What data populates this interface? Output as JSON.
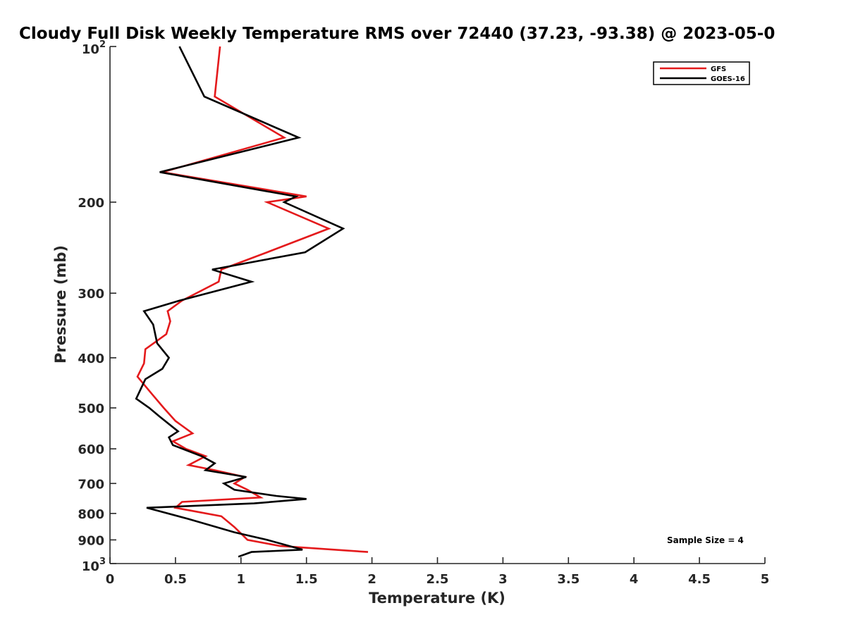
{
  "chart_data": {
    "type": "line",
    "title": "Cloudy Full Disk Weekly Temperature RMS over 72440 (37.23, -93.38) @ 2023-05-0",
    "xlabel": "Temperature (K)",
    "ylabel": "Pressure (mb)",
    "xlim": [
      0,
      5
    ],
    "ylim": [
      100,
      1000
    ],
    "y_scale": "log",
    "y_reversed": true,
    "grid": false,
    "legend_position": "top-right",
    "x_ticks": [
      {
        "value": 0,
        "label": "0"
      },
      {
        "value": 0.5,
        "label": "0.5"
      },
      {
        "value": 1,
        "label": "1"
      },
      {
        "value": 1.5,
        "label": "1.5"
      },
      {
        "value": 2,
        "label": "2"
      },
      {
        "value": 2.5,
        "label": "2.5"
      },
      {
        "value": 3,
        "label": "3"
      },
      {
        "value": 3.5,
        "label": "3.5"
      },
      {
        "value": 4,
        "label": "4"
      },
      {
        "value": 4.5,
        "label": "4.5"
      },
      {
        "value": 5,
        "label": "5"
      }
    ],
    "y_ticks": [
      {
        "value": 100,
        "label": "10",
        "exponent": "2"
      },
      {
        "value": 200,
        "label": "200"
      },
      {
        "value": 300,
        "label": "300"
      },
      {
        "value": 400,
        "label": "400"
      },
      {
        "value": 500,
        "label": "500"
      },
      {
        "value": 600,
        "label": "600"
      },
      {
        "value": 700,
        "label": "700"
      },
      {
        "value": 800,
        "label": "800"
      },
      {
        "value": 900,
        "label": "900"
      },
      {
        "value": 1000,
        "label": "10",
        "exponent": "3"
      }
    ],
    "annotation": "Sample Size = 4",
    "series": [
      {
        "name": "GFS",
        "color": "#e41a1c",
        "points": [
          [
            0.84,
            100
          ],
          [
            0.8,
            125
          ],
          [
            1.33,
            150
          ],
          [
            0.4,
            175
          ],
          [
            1.5,
            195
          ],
          [
            1.2,
            200
          ],
          [
            1.67,
            225
          ],
          [
            1.2,
            250
          ],
          [
            0.85,
            270
          ],
          [
            0.83,
            285
          ],
          [
            0.55,
            310
          ],
          [
            0.44,
            325
          ],
          [
            0.46,
            340
          ],
          [
            0.43,
            360
          ],
          [
            0.27,
            385
          ],
          [
            0.26,
            410
          ],
          [
            0.21,
            435
          ],
          [
            0.32,
            470
          ],
          [
            0.41,
            500
          ],
          [
            0.5,
            530
          ],
          [
            0.63,
            560
          ],
          [
            0.48,
            580
          ],
          [
            0.58,
            600
          ],
          [
            0.73,
            620
          ],
          [
            0.6,
            645
          ],
          [
            0.8,
            660
          ],
          [
            1.03,
            680
          ],
          [
            0.95,
            700
          ],
          [
            1.05,
            720
          ],
          [
            1.15,
            745
          ],
          [
            0.55,
            760
          ],
          [
            0.5,
            780
          ],
          [
            0.85,
            810
          ],
          [
            0.95,
            850
          ],
          [
            1.05,
            900
          ],
          [
            1.3,
            925
          ],
          [
            1.97,
            950
          ]
        ]
      },
      {
        "name": "GOES-16",
        "color": "#000000",
        "points": [
          [
            0.53,
            100
          ],
          [
            0.72,
            125
          ],
          [
            1.44,
            150
          ],
          [
            0.38,
            175
          ],
          [
            1.42,
            195
          ],
          [
            1.33,
            200
          ],
          [
            1.78,
            225
          ],
          [
            1.49,
            250
          ],
          [
            0.78,
            270
          ],
          [
            1.08,
            285
          ],
          [
            0.53,
            310
          ],
          [
            0.26,
            325
          ],
          [
            0.33,
            345
          ],
          [
            0.36,
            375
          ],
          [
            0.45,
            400
          ],
          [
            0.4,
            420
          ],
          [
            0.27,
            440
          ],
          [
            0.2,
            480
          ],
          [
            0.3,
            500
          ],
          [
            0.38,
            520
          ],
          [
            0.52,
            555
          ],
          [
            0.45,
            570
          ],
          [
            0.48,
            590
          ],
          [
            0.7,
            620
          ],
          [
            0.8,
            640
          ],
          [
            0.73,
            660
          ],
          [
            1.04,
            680
          ],
          [
            0.87,
            700
          ],
          [
            0.95,
            720
          ],
          [
            1.27,
            740
          ],
          [
            1.5,
            750
          ],
          [
            1.1,
            765
          ],
          [
            0.28,
            780
          ],
          [
            0.6,
            820
          ],
          [
            0.95,
            870
          ],
          [
            1.2,
            900
          ],
          [
            1.37,
            925
          ],
          [
            1.47,
            940
          ],
          [
            1.08,
            950
          ],
          [
            0.98,
            970
          ]
        ]
      }
    ]
  }
}
